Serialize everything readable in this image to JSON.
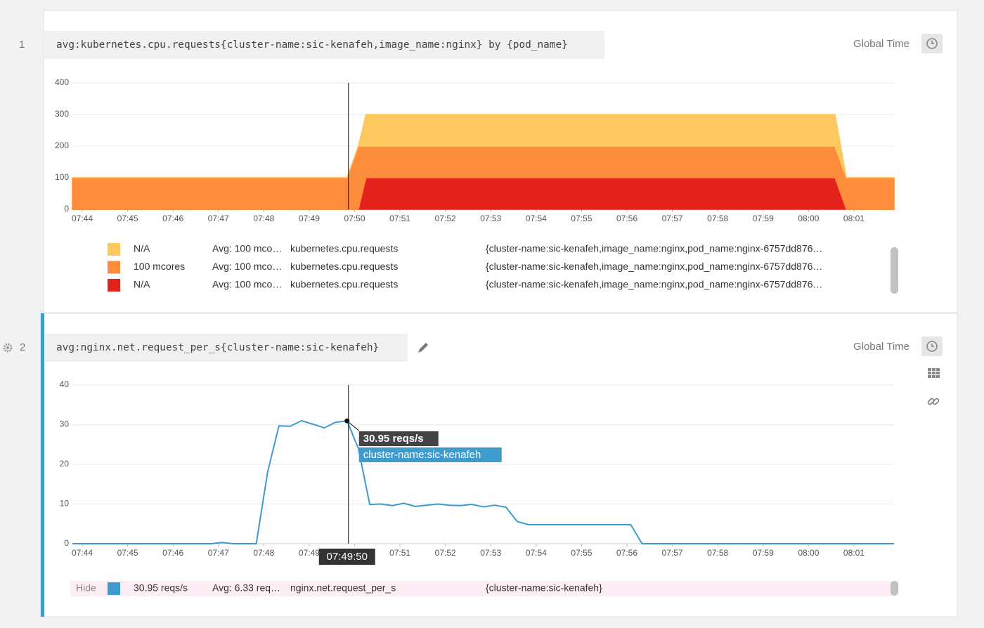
{
  "panels": [
    {
      "number": "1",
      "query": "avg:kubernetes.cpu.requests{cluster-name:sic-kenafeh,image_name:nginx} by {pod_name}",
      "time_control": "Global Time"
    },
    {
      "number": "2",
      "query": "avg:nginx.net.request_per_s{cluster-name:sic-kenafeh}",
      "time_control": "Global Time",
      "legend_toggle": "Hide"
    }
  ],
  "chart_data": [
    {
      "type": "area",
      "stacked": true,
      "x": [
        "07:43:47",
        "07:49:50",
        "07:50:05",
        "07:50:15",
        "08:00:35",
        "08:00:50",
        "08:01:53"
      ],
      "series": [
        {
          "name": "N/A",
          "color": "#fdc95e",
          "values": [
            0,
            0,
            0,
            100,
            100,
            0,
            0
          ],
          "avg": "Avg: 100 mco…",
          "metric": "kubernetes.cpu.requests",
          "tags": "{cluster-name:sic-kenafeh,image_name:nginx,pod_name:nginx-6757dd876…"
        },
        {
          "name": "100 mcores",
          "color": "#fd8c3c",
          "values": [
            100,
            100,
            200,
            100,
            100,
            100,
            100
          ],
          "avg": "Avg: 100 mco…",
          "metric": "kubernetes.cpu.requests",
          "tags": "{cluster-name:sic-kenafeh,image_name:nginx,pod_name:nginx-6757dd876…"
        },
        {
          "name": "N/A",
          "color": "#e3221c",
          "values": [
            0,
            0,
            0,
            100,
            100,
            0,
            0
          ],
          "avg": "Avg: 100 mco…",
          "metric": "kubernetes.cpu.requests",
          "tags": "{cluster-name:sic-kenafeh,image_name:nginx,pod_name:nginx-6757dd876…"
        }
      ],
      "xlim": [
        "07:43:47",
        "08:01:53"
      ],
      "xticks": [
        "07:44",
        "07:45",
        "07:46",
        "07:47",
        "07:48",
        "07:49",
        "07:50",
        "07:51",
        "07:52",
        "07:53",
        "07:54",
        "07:55",
        "07:56",
        "07:57",
        "07:58",
        "07:59",
        "08:00",
        "08:01"
      ],
      "ylim": [
        0,
        400
      ],
      "yticks": [
        0,
        100,
        200,
        300,
        400
      ],
      "grid": true
    },
    {
      "type": "line",
      "x": [
        "07:43:47",
        "07:46:50",
        "07:47:05",
        "07:47:20",
        "07:47:50",
        "07:48:05",
        "07:48:20",
        "07:48:35",
        "07:48:50",
        "07:49:05",
        "07:49:20",
        "07:49:35",
        "07:49:50",
        "07:50:05",
        "07:50:20",
        "07:50:35",
        "07:50:50",
        "07:51:05",
        "07:51:20",
        "07:51:35",
        "07:51:50",
        "07:52:05",
        "07:52:20",
        "07:52:35",
        "07:52:50",
        "07:53:05",
        "07:53:20",
        "07:53:35",
        "07:53:50",
        "07:56:05",
        "07:56:20",
        "08:01:53"
      ],
      "series": [
        {
          "name": "cluster-name:sic-kenafeh",
          "color": "#3d9bd0",
          "values": [
            0,
            0,
            0.3,
            0,
            0,
            18,
            29.7,
            29.6,
            31,
            30.1,
            29.2,
            30.6,
            30.95,
            24,
            9.9,
            10,
            9.6,
            10.2,
            9.4,
            9.7,
            10,
            9.7,
            9.6,
            9.9,
            9.3,
            9.7,
            9.2,
            5.6,
            4.8,
            4.8,
            0,
            0
          ],
          "avg": "Avg: 6.33 req…",
          "metric": "nginx.net.request_per_s",
          "tags": "{cluster-name:sic-kenafeh}"
        }
      ],
      "tooltip": {
        "x": "07:49:50",
        "value": 30.95,
        "value_label": "30.95 reqs/s"
      },
      "xlim": [
        "07:43:47",
        "08:01:53"
      ],
      "xticks": [
        "07:44",
        "07:45",
        "07:46",
        "07:47",
        "07:48",
        "07:49",
        "07:50",
        "07:51",
        "07:52",
        "07:53",
        "07:54",
        "07:55",
        "07:56",
        "07:57",
        "07:58",
        "07:59",
        "08:00",
        "08:01"
      ],
      "ylim": [
        0,
        40
      ],
      "yticks": [
        0,
        10,
        20,
        30,
        40
      ],
      "grid": true
    }
  ]
}
